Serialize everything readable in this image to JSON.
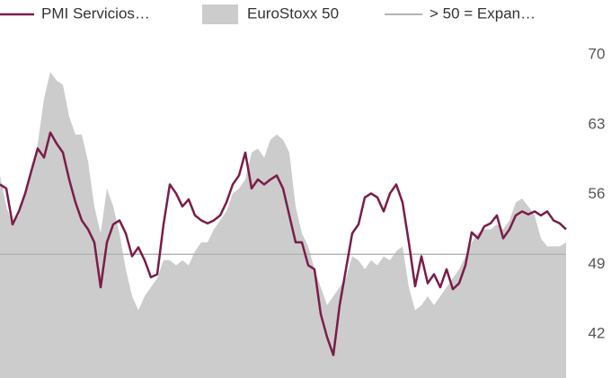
{
  "chart_data": {
    "type": "line",
    "series": [
      {
        "name": "PMI Servicios…",
        "type": "line",
        "color": "#7b1c4a",
        "values": [
          57.0,
          56.6,
          53.0,
          54.3,
          56.1,
          58.4,
          60.6,
          59.7,
          62.2,
          61.1,
          60.2,
          57.5,
          55.2,
          53.4,
          52.5,
          51.2,
          46.7,
          51.2,
          53.0,
          53.4,
          52.1,
          49.8,
          50.7,
          49.4,
          47.7,
          48.0,
          53.0,
          57.0,
          56.1,
          54.8,
          55.5,
          53.9,
          53.4,
          53.1,
          53.4,
          53.9,
          55.2,
          57.0,
          57.9,
          60.2,
          56.6,
          57.5,
          57.0,
          57.5,
          57.9,
          56.6,
          53.9,
          51.2,
          51.2,
          48.9,
          48.5,
          44.0,
          41.7,
          39.9,
          44.9,
          48.5,
          52.1,
          53.0,
          55.7,
          56.1,
          55.7,
          54.3,
          56.1,
          57.0,
          55.2,
          51.2,
          46.8,
          49.8,
          47.1,
          48.0,
          46.7,
          48.5,
          46.5,
          47.1,
          48.9,
          52.2,
          51.6,
          52.8,
          53.1,
          53.9,
          51.6,
          52.5,
          53.9,
          54.3,
          54.0,
          54.3,
          53.9,
          54.3,
          53.4,
          53.1,
          52.5
        ]
      },
      {
        "name": "EuroStoxx 50",
        "type": "area",
        "color": "#cccccc",
        "values": [
          57.9,
          54.8,
          53.0,
          53.9,
          56.1,
          58.8,
          61.1,
          65.6,
          68.3,
          67.4,
          67.0,
          63.8,
          62.0,
          62.0,
          59.3,
          54.8,
          52.1,
          56.6,
          54.8,
          52.1,
          48.5,
          45.8,
          44.4,
          45.8,
          46.7,
          47.6,
          49.4,
          49.4,
          48.9,
          49.4,
          48.9,
          50.3,
          51.2,
          51.2,
          52.5,
          53.4,
          54.3,
          56.1,
          56.6,
          57.5,
          60.2,
          60.6,
          59.7,
          61.5,
          62.0,
          61.5,
          60.2,
          54.8,
          52.1,
          50.8,
          48.5,
          46.7,
          44.9,
          45.8,
          46.7,
          47.6,
          49.8,
          49.4,
          48.5,
          49.4,
          48.9,
          49.8,
          49.4,
          50.3,
          50.8,
          46.7,
          44.4,
          44.9,
          45.8,
          44.9,
          45.8,
          46.7,
          47.6,
          48.5,
          49.8,
          51.2,
          52.1,
          52.5,
          52.5,
          53.0,
          52.5,
          53.4,
          55.2,
          55.6,
          54.8,
          53.9,
          51.6,
          50.8,
          50.8,
          50.8,
          51.2
        ]
      }
    ],
    "reference_line": {
      "name": "> 50 = Expan…",
      "value": 50,
      "color": "#b4b4b4"
    },
    "ylim": [
      37.6,
      72
    ],
    "yticks": [
      42,
      49,
      56,
      63,
      70
    ],
    "grid": false
  }
}
